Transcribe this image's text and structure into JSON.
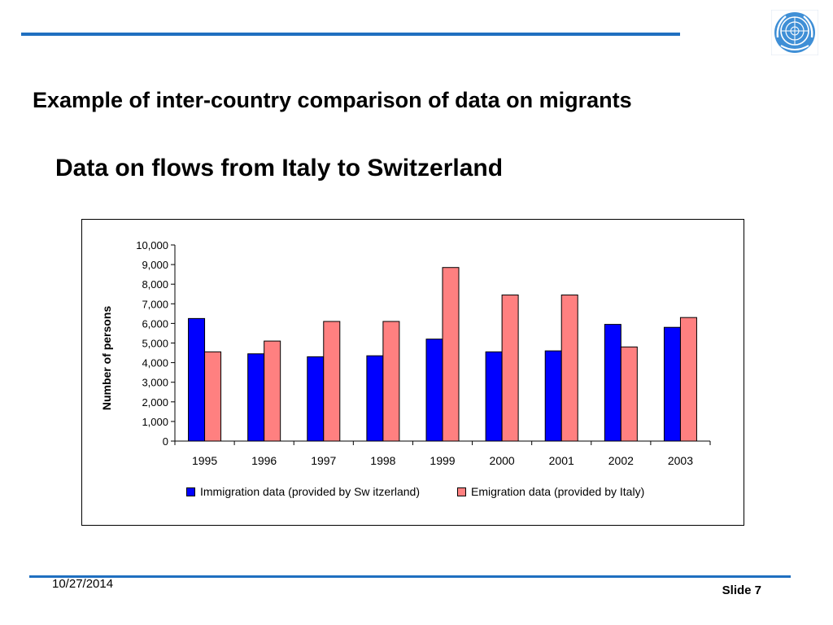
{
  "slide": {
    "heading": "Example of inter-country comparison of data on migrants",
    "subheading": "Data on flows from Italy to Switzerland",
    "date": "10/27/2014",
    "slide_number": "Slide 7",
    "logo": "un-emblem-icon",
    "accent_color": "#1f6fc0"
  },
  "chart_data": {
    "type": "bar",
    "title": "",
    "xlabel": "",
    "ylabel": "Number of persons",
    "ylim": [
      0,
      10000
    ],
    "yticks": [
      "0",
      "1,000",
      "2,000",
      "3,000",
      "4,000",
      "5,000",
      "6,000",
      "7,000",
      "8,000",
      "9,000",
      "10,000"
    ],
    "categories": [
      "1995",
      "1996",
      "1997",
      "1998",
      "1999",
      "2000",
      "2001",
      "2002",
      "2003"
    ],
    "series": [
      {
        "name": "Immigration data (provided by Sw itzerland)",
        "color": "#0000ff",
        "values": [
          6250,
          4450,
          4300,
          4350,
          5200,
          4550,
          4600,
          5950,
          5800
        ]
      },
      {
        "name": "Emigration data (provided by Italy)",
        "color": "#ff8080",
        "values": [
          4550,
          5100,
          6100,
          6100,
          8850,
          7450,
          7450,
          4800,
          6300
        ]
      }
    ],
    "legend_position": "bottom",
    "grid": false
  }
}
